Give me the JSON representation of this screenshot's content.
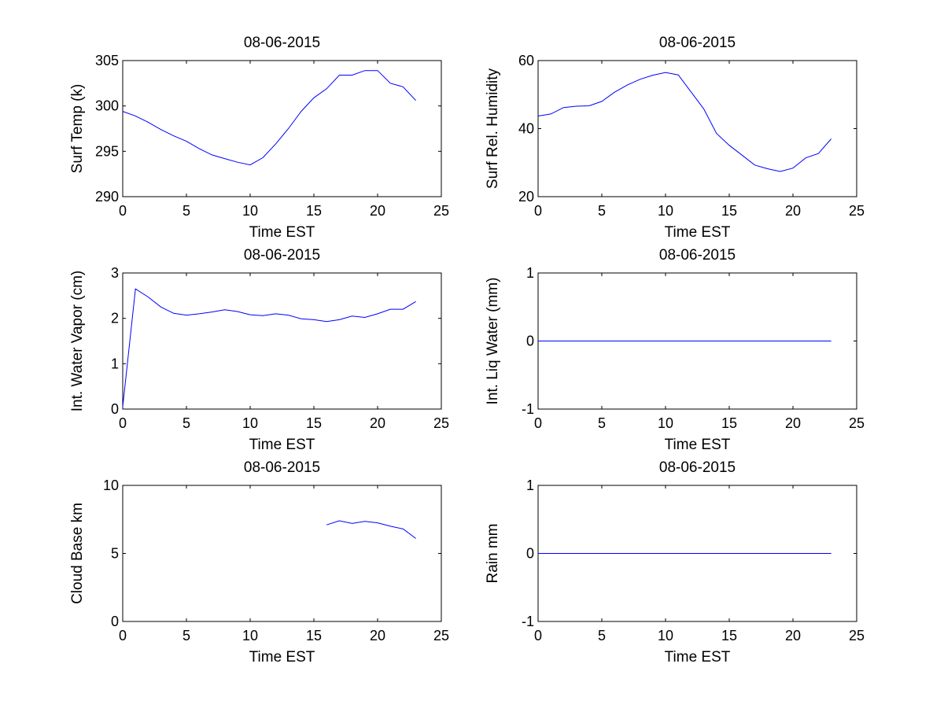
{
  "chart_data": [
    {
      "type": "line",
      "title": "08-06-2015",
      "xlabel": "Time EST",
      "ylabel": "Surf Temp (k)",
      "xlim": [
        0,
        25
      ],
      "ylim": [
        290,
        305
      ],
      "xticks": [
        "0",
        "5",
        "10",
        "15",
        "20",
        "25"
      ],
      "yticks": [
        "290",
        "295",
        "300",
        "305"
      ],
      "grid": false,
      "series": [
        {
          "color": "#0000ff",
          "x": [
            0,
            1,
            2,
            3,
            4,
            5,
            6,
            7,
            8,
            9,
            10,
            11,
            12,
            13,
            14,
            15,
            16,
            17,
            18,
            19,
            20,
            21,
            22,
            23
          ],
          "y": [
            299.4,
            298.9,
            298.2,
            297.4,
            296.7,
            296.1,
            295.3,
            294.6,
            294.2,
            293.8,
            293.5,
            294.3,
            295.8,
            297.5,
            299.4,
            300.9,
            301.9,
            303.4,
            303.4,
            303.9,
            303.9,
            302.5,
            302.1,
            300.6
          ]
        }
      ]
    },
    {
      "type": "line",
      "title": "08-06-2015",
      "xlabel": "Time EST",
      "ylabel": "Surf Rel. Humidity",
      "xlim": [
        0,
        25
      ],
      "ylim": [
        20,
        60
      ],
      "xticks": [
        "0",
        "5",
        "10",
        "15",
        "20",
        "25"
      ],
      "yticks": [
        "20",
        "40",
        "60"
      ],
      "grid": false,
      "series": [
        {
          "color": "#0000ff",
          "x": [
            0,
            1,
            2,
            3,
            4,
            5,
            6,
            7,
            8,
            9,
            10,
            11,
            12,
            13,
            14,
            15,
            16,
            17,
            18,
            19,
            20,
            21,
            22,
            23
          ],
          "y": [
            43.7,
            44.3,
            46.2,
            46.6,
            46.7,
            48.0,
            50.7,
            52.8,
            54.5,
            55.7,
            56.5,
            55.8,
            50.8,
            45.8,
            38.6,
            35.1,
            32.2,
            29.3,
            28.2,
            27.4,
            28.4,
            31.4,
            32.7,
            37.0
          ]
        }
      ]
    },
    {
      "type": "line",
      "title": "08-06-2015",
      "xlabel": "Time EST",
      "ylabel": "Int. Water Vapor (cm)",
      "xlim": [
        0,
        25
      ],
      "ylim": [
        0,
        3
      ],
      "xticks": [
        "0",
        "5",
        "10",
        "15",
        "20",
        "25"
      ],
      "yticks": [
        "0",
        "1",
        "2",
        "3"
      ],
      "grid": false,
      "series": [
        {
          "color": "#0000ff",
          "x": [
            0,
            1,
            2,
            3,
            4,
            5,
            6,
            7,
            8,
            9,
            10,
            11,
            12,
            13,
            14,
            15,
            16,
            17,
            18,
            19,
            20,
            21,
            22,
            23
          ],
          "y": [
            0.05,
            2.65,
            2.47,
            2.25,
            2.11,
            2.07,
            2.1,
            2.14,
            2.19,
            2.15,
            2.08,
            2.06,
            2.1,
            2.07,
            1.99,
            1.97,
            1.93,
            1.97,
            2.05,
            2.02,
            2.1,
            2.2,
            2.2,
            2.37
          ]
        }
      ]
    },
    {
      "type": "line",
      "title": "08-06-2015",
      "xlabel": "Time EST",
      "ylabel": "Int. Liq Water (mm)",
      "xlim": [
        0,
        25
      ],
      "ylim": [
        -1,
        1
      ],
      "xticks": [
        "0",
        "5",
        "10",
        "15",
        "20",
        "25"
      ],
      "yticks": [
        "-1",
        "0",
        "1"
      ],
      "grid": false,
      "series": [
        {
          "color": "#0000ff",
          "x": [
            0,
            23
          ],
          "y": [
            0,
            0
          ]
        }
      ]
    },
    {
      "type": "line",
      "title": "08-06-2015",
      "xlabel": "Time EST",
      "ylabel": "Cloud Base km",
      "xlim": [
        0,
        25
      ],
      "ylim": [
        0,
        10
      ],
      "xticks": [
        "0",
        "5",
        "10",
        "15",
        "20",
        "25"
      ],
      "yticks": [
        "0",
        "5",
        "10"
      ],
      "grid": false,
      "series": [
        {
          "color": "#0000ff",
          "x": [
            16,
            17,
            18,
            19,
            20,
            21,
            22,
            23
          ],
          "y": [
            7.1,
            7.4,
            7.2,
            7.35,
            7.25,
            7.0,
            6.8,
            6.1
          ]
        }
      ]
    },
    {
      "type": "line",
      "title": "08-06-2015",
      "xlabel": "Time EST",
      "ylabel": "Rain mm",
      "xlim": [
        0,
        25
      ],
      "ylim": [
        -1,
        1
      ],
      "xticks": [
        "0",
        "5",
        "10",
        "15",
        "20",
        "25"
      ],
      "yticks": [
        "-1",
        "0",
        "1"
      ],
      "grid": false,
      "series": [
        {
          "color": "#0000ff",
          "x": [
            0,
            23
          ],
          "y": [
            0,
            0
          ]
        }
      ]
    }
  ]
}
